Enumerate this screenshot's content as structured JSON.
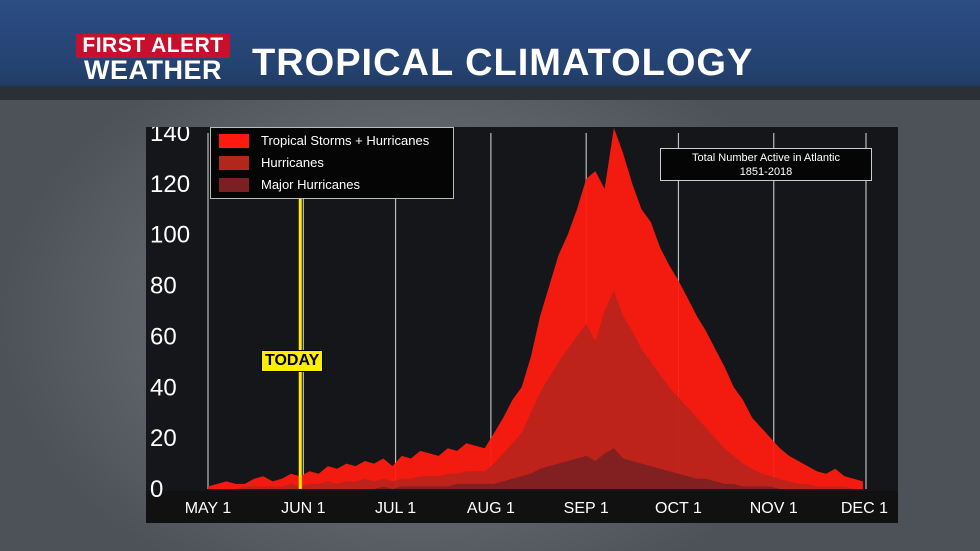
{
  "header": {
    "logo_line1": "FIRST ALERT",
    "logo_line2": "WEATHER",
    "title": "TROPICAL CLIMATOLOGY"
  },
  "note": {
    "line1": "Total Number Active in Atlantic",
    "line2": "1851-2018"
  },
  "today_label": "TODAY",
  "colors": {
    "ts_hurricanes": "#ff1a10",
    "hurricanes": "#b3261c",
    "major": "#7a1f22",
    "today_line": "#ffee00"
  },
  "chart_data": {
    "type": "area",
    "title": "",
    "xlabel": "",
    "ylabel": "",
    "ylim": [
      0,
      140
    ],
    "yticks": [
      0,
      20,
      40,
      60,
      80,
      100,
      120,
      140
    ],
    "xticks": [
      "MAY 1",
      "JUN 1",
      "JUL 1",
      "AUG 1",
      "SEP 1",
      "OCT 1",
      "NOV 1",
      "DEC 1"
    ],
    "xtick_days": [
      0,
      31,
      61,
      92,
      123,
      153,
      184,
      214
    ],
    "today_day": 30,
    "x": [
      0,
      3,
      6,
      9,
      12,
      15,
      18,
      21,
      24,
      27,
      30,
      33,
      36,
      39,
      42,
      45,
      48,
      51,
      54,
      57,
      60,
      63,
      66,
      69,
      72,
      75,
      78,
      81,
      84,
      87,
      90,
      93,
      96,
      99,
      102,
      105,
      108,
      111,
      114,
      117,
      120,
      123,
      126,
      129,
      132,
      135,
      138,
      141,
      144,
      147,
      150,
      153,
      156,
      159,
      162,
      165,
      168,
      171,
      174,
      177,
      180,
      183,
      186,
      189,
      192,
      195,
      198,
      201,
      204,
      207,
      210,
      213
    ],
    "series": [
      {
        "name": "Tropical Storms + Hurricanes",
        "values": [
          1,
          2,
          3,
          2,
          2,
          4,
          5,
          3,
          4,
          6,
          5,
          7,
          6,
          9,
          8,
          10,
          9,
          11,
          10,
          12,
          9,
          13,
          12,
          15,
          14,
          13,
          16,
          15,
          18,
          17,
          16,
          22,
          28,
          35,
          40,
          52,
          68,
          80,
          92,
          100,
          110,
          122,
          125,
          118,
          142,
          132,
          120,
          110,
          105,
          95,
          88,
          82,
          75,
          68,
          62,
          55,
          48,
          40,
          35,
          28,
          24,
          20,
          16,
          13,
          11,
          9,
          7,
          6,
          8,
          5,
          4,
          3
        ]
      },
      {
        "name": "Hurricanes",
        "values": [
          0,
          0,
          0,
          0,
          1,
          1,
          1,
          1,
          1,
          2,
          1,
          2,
          2,
          3,
          2,
          3,
          3,
          4,
          3,
          4,
          3,
          4,
          4,
          5,
          5,
          5,
          6,
          6,
          7,
          7,
          7,
          10,
          14,
          18,
          22,
          30,
          38,
          44,
          50,
          55,
          60,
          65,
          58,
          70,
          78,
          68,
          62,
          55,
          50,
          45,
          40,
          36,
          32,
          28,
          24,
          20,
          16,
          13,
          10,
          8,
          6,
          5,
          4,
          3,
          2,
          2,
          1,
          1,
          1,
          1,
          0,
          0
        ]
      },
      {
        "name": "Major Hurricanes",
        "values": [
          0,
          0,
          0,
          0,
          0,
          0,
          0,
          0,
          0,
          0,
          0,
          0,
          0,
          0,
          0,
          0,
          0,
          0,
          0,
          1,
          0,
          1,
          1,
          1,
          1,
          1,
          1,
          2,
          2,
          2,
          2,
          2,
          3,
          4,
          5,
          6,
          8,
          9,
          10,
          11,
          12,
          13,
          11,
          14,
          16,
          12,
          11,
          10,
          9,
          8,
          7,
          6,
          5,
          4,
          4,
          3,
          2,
          2,
          1,
          1,
          1,
          1,
          0,
          0,
          0,
          0,
          0,
          0,
          0,
          0,
          0,
          0
        ]
      }
    ]
  }
}
